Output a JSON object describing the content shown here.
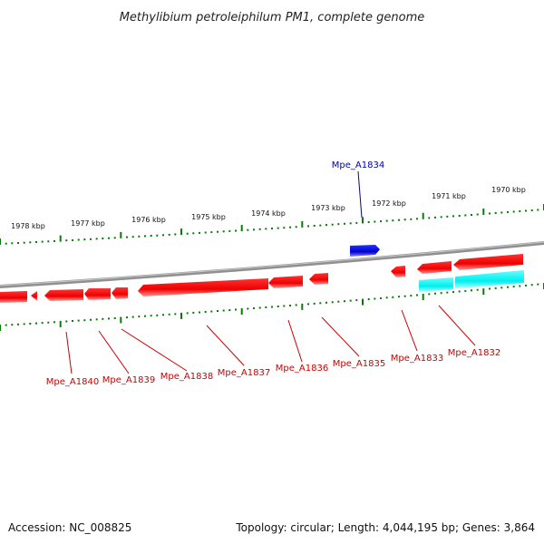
{
  "title": "Methylibium petroleiphilum PM1, complete genome",
  "accession": "Accession: NC_008825",
  "summary": "Topology: circular; Length: 4,044,195 bp; Genes: 3,864",
  "colors": {
    "reverse_gene": "#ff0000",
    "forward_gene": "#0000dd",
    "rna": "#00ffff",
    "tick": "#0a7a0a",
    "backbone": "#808080",
    "label_reverse": "#cc0000",
    "label_forward": "#0000aa"
  },
  "scale_labels": [
    "1978 kbp",
    "1977 kbp",
    "1976 kbp",
    "1975 kbp",
    "1974 kbp",
    "1973 kbp",
    "1972 kbp",
    "1971 kbp",
    "1970 kbp"
  ],
  "gene_labels": {
    "forward": [
      "Mpe_A1834"
    ],
    "reverse": [
      "Mpe_A1840",
      "Mpe_A1839",
      "Mpe_A1838",
      "Mpe_A1837",
      "Mpe_A1836",
      "Mpe_A1835",
      "Mpe_A1833",
      "Mpe_A1832"
    ]
  }
}
